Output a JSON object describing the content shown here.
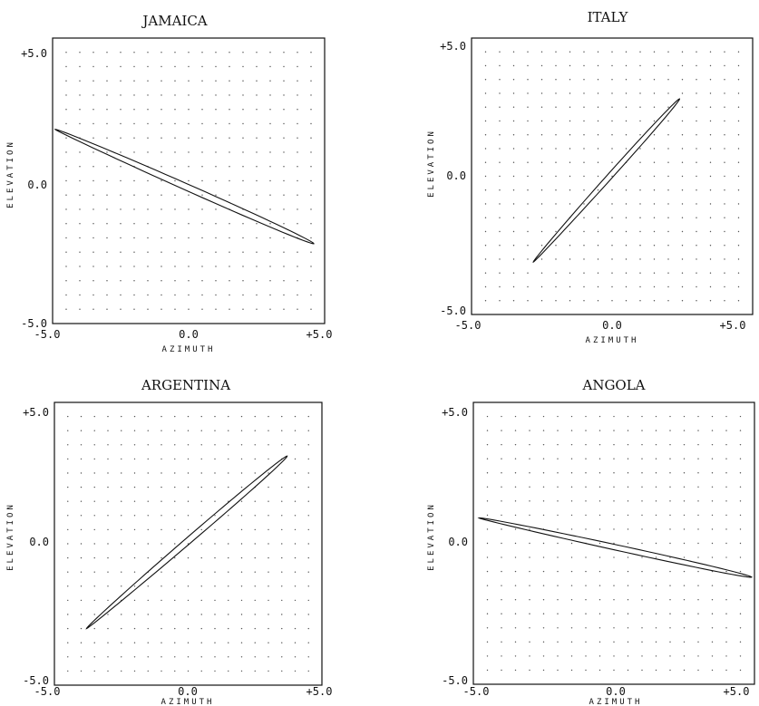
{
  "chart_data": [
    {
      "type": "line",
      "title": "JAMAICA",
      "xlabel": "AZIMUTH",
      "ylabel": "ELEVATION",
      "xlim": [
        -5.0,
        5.0
      ],
      "ylim": [
        -5.0,
        5.0
      ],
      "x_ticks": [
        "-5.0",
        "0.0",
        "+5.0"
      ],
      "y_ticks": [
        "-5.0",
        "0.0",
        "+5.0"
      ],
      "grid": true,
      "series": [
        {
          "x": [
            -4.9,
            0.0,
            4.6
          ],
          "y": [
            1.8,
            0.0,
            -2.2
          ],
          "width": 0.13,
          "color": "#111111"
        }
      ]
    },
    {
      "type": "line",
      "title": "ITALY",
      "xlabel": "AZIMUTH",
      "ylabel": "ELEVATION",
      "xlim": [
        -5.0,
        5.0
      ],
      "ylim": [
        -5.0,
        5.0
      ],
      "x_ticks": [
        "-5.0",
        "0.0",
        "+5.0"
      ],
      "y_ticks": [
        "-5.0",
        "0.0",
        "+5.0"
      ],
      "grid": true,
      "series": [
        {
          "x": [
            -2.8,
            0.0,
            2.4
          ],
          "y": [
            -3.1,
            0.0,
            2.8
          ],
          "width": 0.11,
          "color": "#111111"
        }
      ]
    },
    {
      "type": "line",
      "title": "ARGENTINA",
      "xlabel": "AZIMUTH",
      "ylabel": "ELEVATION",
      "xlim": [
        -5.0,
        5.0
      ],
      "ylim": [
        -5.0,
        5.0
      ],
      "x_ticks": [
        "-5.0",
        "0.0",
        "+5.0"
      ],
      "y_ticks": [
        "-5.0",
        "0.0",
        "+5.0"
      ],
      "grid": true,
      "series": [
        {
          "x": [
            -3.8,
            0.0,
            3.7
          ],
          "y": [
            -3.0,
            0.0,
            3.1
          ],
          "width": 0.13,
          "color": "#111111"
        }
      ]
    },
    {
      "type": "line",
      "title": "ANGOLA",
      "xlabel": "AZIMUTH",
      "ylabel": "ELEVATION",
      "xlim": [
        -5.0,
        5.0
      ],
      "ylim": [
        -5.0,
        5.0
      ],
      "x_ticks": [
        "-5.0",
        "0.0",
        "+5.0"
      ],
      "y_ticks": [
        "-5.0",
        "0.0",
        "+5.0"
      ],
      "grid": true,
      "series": [
        {
          "x": [
            -4.8,
            0.0,
            4.9
          ],
          "y": [
            0.9,
            0.0,
            -1.2
          ],
          "width": 0.11,
          "color": "#111111"
        }
      ]
    }
  ]
}
